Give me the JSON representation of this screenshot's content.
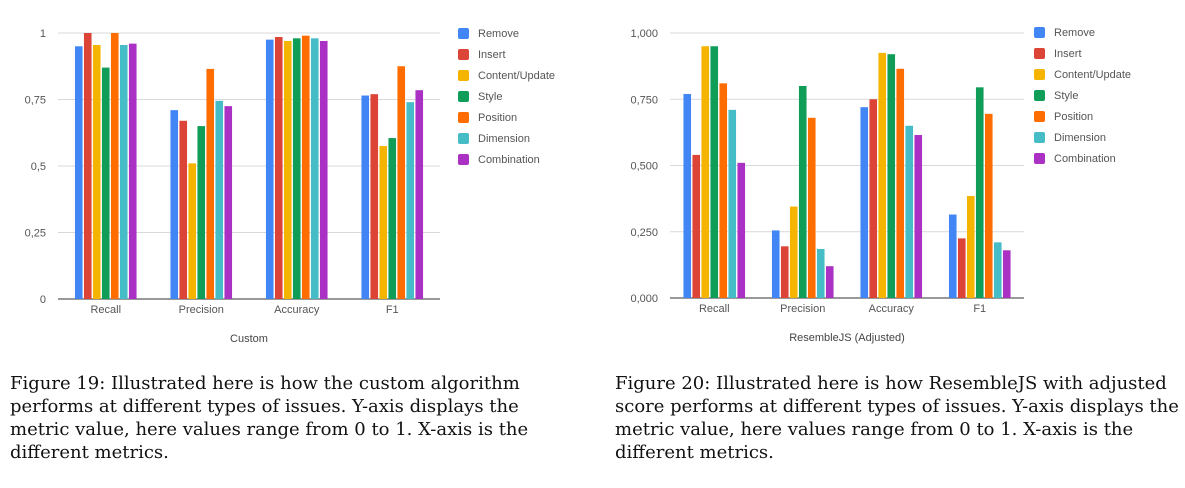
{
  "chart_data": [
    {
      "type": "bar",
      "xlabel": "Custom",
      "ylabel": "",
      "ylim": [
        0,
        1
      ],
      "yticks": [
        0,
        0.25,
        0.5,
        0.75,
        1
      ],
      "ytick_labels": [
        "0",
        "0,25",
        "0,5",
        "0,75",
        "1"
      ],
      "grid": true,
      "legend_position": "right",
      "categories": [
        "Recall",
        "Precision",
        "Accuracy",
        "F1"
      ],
      "series": [
        {
          "name": "Remove",
          "color": "#4285F4",
          "values": [
            0.95,
            0.71,
            0.975,
            0.765
          ]
        },
        {
          "name": "Insert",
          "color": "#DB4437",
          "values": [
            1.0,
            0.67,
            0.985,
            0.77
          ]
        },
        {
          "name": "Content/Update",
          "color": "#F4B400",
          "values": [
            0.955,
            0.51,
            0.97,
            0.575
          ]
        },
        {
          "name": "Style",
          "color": "#0F9D58",
          "values": [
            0.87,
            0.65,
            0.98,
            0.605
          ]
        },
        {
          "name": "Position",
          "color": "#FF6D00",
          "values": [
            1.0,
            0.865,
            0.99,
            0.875
          ]
        },
        {
          "name": "Dimension",
          "color": "#46BDC6",
          "values": [
            0.955,
            0.745,
            0.98,
            0.74
          ]
        },
        {
          "name": "Combination",
          "color": "#AB30C4",
          "values": [
            0.96,
            0.725,
            0.97,
            0.785
          ]
        }
      ]
    },
    {
      "type": "bar",
      "xlabel": "ResembleJS (Adjusted)",
      "ylabel": "",
      "ylim": [
        0,
        1
      ],
      "yticks": [
        0,
        0.25,
        0.5,
        0.75,
        1
      ],
      "ytick_labels": [
        "0,000",
        "0,250",
        "0,500",
        "0,750",
        "1,000"
      ],
      "grid": true,
      "legend_position": "right",
      "categories": [
        "Recall",
        "Precision",
        "Accuracy",
        "F1"
      ],
      "series": [
        {
          "name": "Remove",
          "color": "#4285F4",
          "values": [
            0.77,
            0.255,
            0.72,
            0.315
          ]
        },
        {
          "name": "Insert",
          "color": "#DB4437",
          "values": [
            0.54,
            0.195,
            0.75,
            0.225
          ]
        },
        {
          "name": "Content/Update",
          "color": "#F4B400",
          "values": [
            0.95,
            0.345,
            0.925,
            0.385
          ]
        },
        {
          "name": "Style",
          "color": "#0F9D58",
          "values": [
            0.95,
            0.8,
            0.92,
            0.795
          ]
        },
        {
          "name": "Position",
          "color": "#FF6D00",
          "values": [
            0.81,
            0.68,
            0.865,
            0.695
          ]
        },
        {
          "name": "Dimension",
          "color": "#46BDC6",
          "values": [
            0.71,
            0.185,
            0.65,
            0.21
          ]
        },
        {
          "name": "Combination",
          "color": "#AB30C4",
          "values": [
            0.51,
            0.12,
            0.615,
            0.18
          ]
        }
      ]
    }
  ],
  "captions": {
    "left": "Figure 19: Illustrated here is how the custom algorithm performs at different types of issues. Y-axis displays the metric value, here values range from 0 to 1. X-axis is the different metrics.",
    "right": "Figure 20: Illustrated here is how ResembleJS with adjusted score performs at different types of issues. Y-axis displays the metric value, here values range from 0 to 1. X-axis is the different metrics."
  }
}
